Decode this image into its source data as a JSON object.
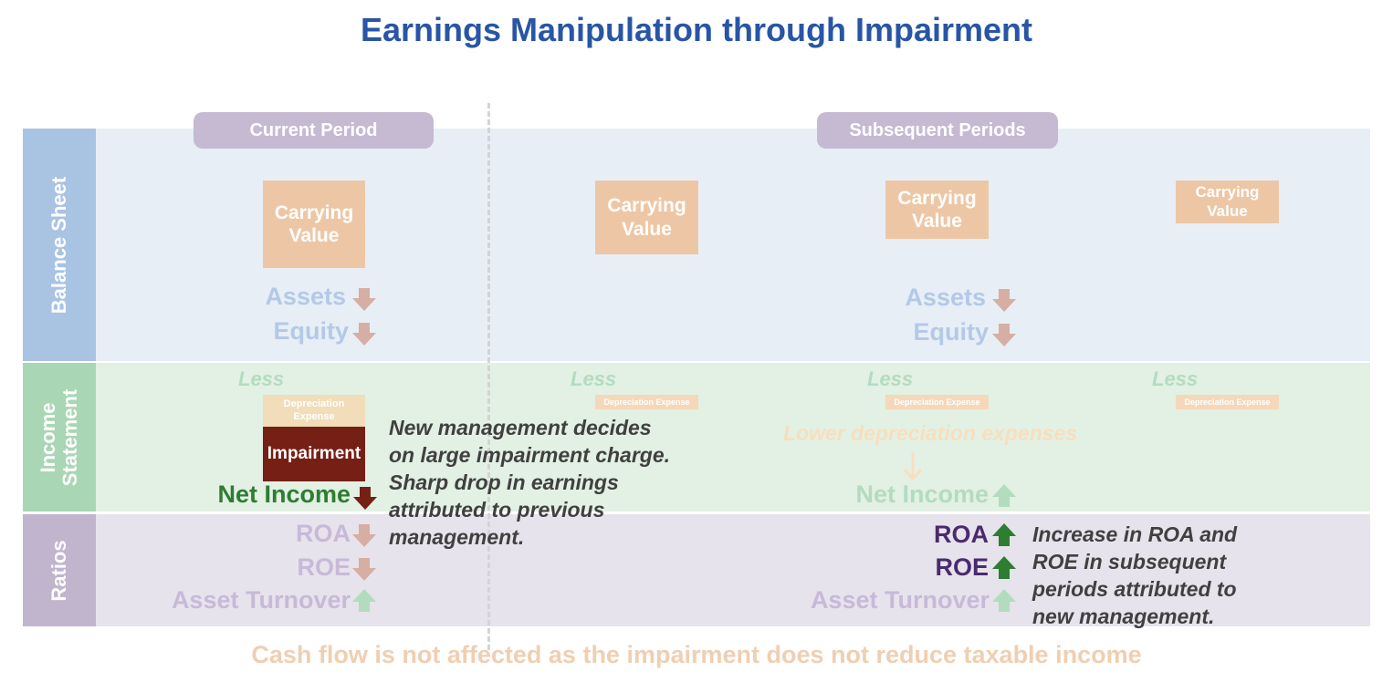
{
  "title": "Earnings Manipulation through Impairment",
  "rows": {
    "balance_sheet": "Balance Sheet",
    "income_statement": "Income\nStatement",
    "ratios": "Ratios"
  },
  "periods": {
    "current": "Current Period",
    "subsequent": "Subsequent Periods"
  },
  "balance_sheet": {
    "carrying_value": "Carrying\nValue",
    "assets": "Assets",
    "equity": "Equity"
  },
  "income_statement": {
    "less": "Less",
    "depreciation_expense": "Depreciation Expense",
    "depreciation_expense_wrapped": "Depreciation\nExpense",
    "impairment": "Impairment",
    "net_income": "Net Income",
    "lower_depreciation": "Lower depreciation expenses"
  },
  "ratios": {
    "roa": "ROA",
    "roe": "ROE",
    "asset_turnover": "Asset Turnover"
  },
  "notes": {
    "current": "New management decides\non large impairment charge.\nSharp drop in earnings\nattributed to previous\nmanagement.",
    "subsequent": "Increase in ROA and\nROE in subsequent\nperiods attributed to\nnew management."
  },
  "footer": "Cash flow is not affected as the impairment does not reduce taxable income",
  "colors": {
    "title": "#2855a6",
    "down_arrow_faint": "#d7aea3",
    "down_arrow_strong": "#761f15",
    "up_arrow_strong": "#2e7d32",
    "up_arrow_faint": "#b3dcbf",
    "net_income_strong": "#2e7d32",
    "ratio_strong": "#4b2a6e"
  }
}
